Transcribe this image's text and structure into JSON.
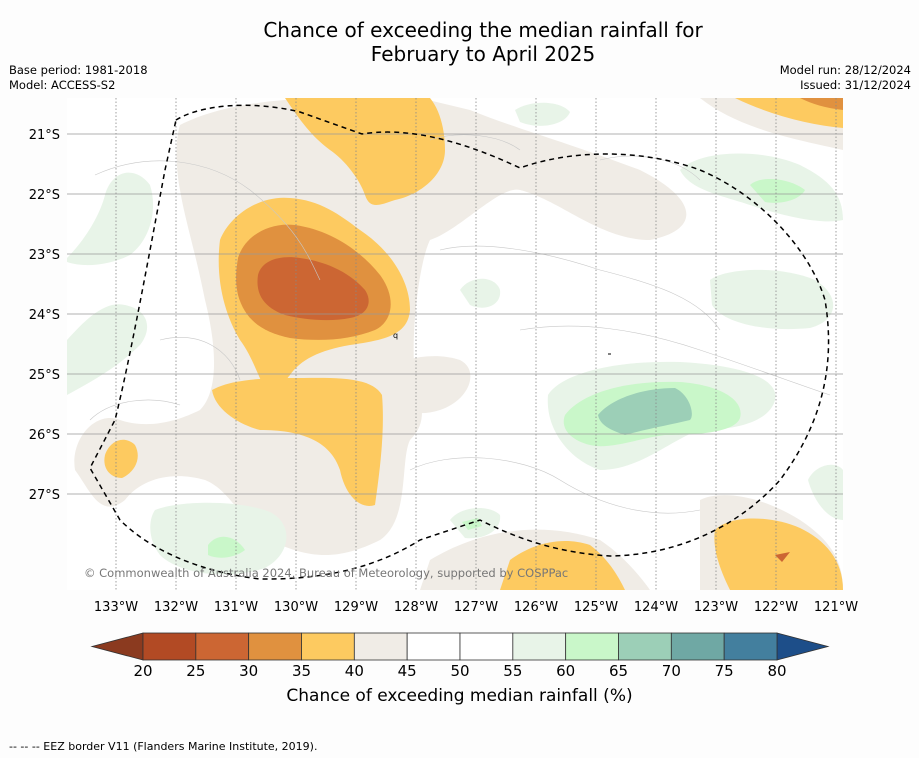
{
  "header": {
    "title_line1": "Chance of exceeding the median rainfall for",
    "title_line2": "February to April 2025",
    "base_period": "Base period: 1981-2018",
    "model": "Model: ACCESS-S2",
    "model_run": "Model run: 28/12/2024",
    "issued": "Issued: 31/12/2024"
  },
  "map": {
    "copyright": "© Commonwealth of Australia 2024, Bureau of Meteorology, supported by COSPPac",
    "lat_labels": [
      "21°S",
      "22°S",
      "23°S",
      "24°S",
      "25°S",
      "26°S",
      "27°S"
    ],
    "lon_labels": [
      "133°W",
      "132°W",
      "131°W",
      "130°W",
      "129°W",
      "128°W",
      "127°W",
      "126°W",
      "125°W",
      "124°W",
      "123°W",
      "122°W",
      "121°W"
    ]
  },
  "colorbar": {
    "ticks": [
      "20",
      "25",
      "30",
      "35",
      "40",
      "45",
      "50",
      "55",
      "60",
      "65",
      "70",
      "75",
      "80"
    ],
    "colors": [
      "#b24a24",
      "#cc6633",
      "#e0913f",
      "#fdca60",
      "#f0ece6",
      "#ffffff",
      "#ffffff",
      "#e8f4e8",
      "#c9f7c9",
      "#9ccfb7",
      "#6fa8a4",
      "#437f9e"
    ],
    "low_color": "#8b3a1f",
    "high_color": "#1d4e89",
    "label": "Chance of exceeding median rainfall (%)"
  },
  "footer": {
    "legend_note": "--  --  -- EEZ border V11 (Flanders Marine Institute, 2019)."
  },
  "chart_data": {
    "type": "heatmap",
    "title": "Chance of exceeding the median rainfall for February to April 2025",
    "xlabel": "",
    "ylabel": "",
    "xlim": [
      "133.8°W",
      "120.9°W"
    ],
    "ylim": [
      "28.6°S",
      "20.4°S"
    ],
    "grid": true,
    "legend": "colorbar-bottom",
    "units": "%",
    "levels": [
      20,
      25,
      30,
      35,
      40,
      45,
      50,
      55,
      60,
      65,
      70,
      75,
      80
    ],
    "features": [
      {
        "region": "near 130.5°W, 23.7°S",
        "value_range": [
          20,
          25
        ]
      },
      {
        "region": "near 130.5°W, 23.7°S (surrounding)",
        "value_range": [
          25,
          30
        ]
      },
      {
        "region": "near 129.2°W, 21.5°S",
        "value_range": [
          35,
          40
        ]
      },
      {
        "region": "near 124.5°W, 25.6°S",
        "value_range": [
          65,
          70
        ]
      },
      {
        "region": "near 124.5°W, 25.8°S (surrounding)",
        "value_range": [
          60,
          65
        ]
      },
      {
        "region": "near 122.0°W, 27.9°S",
        "value_range": [
          35,
          40
        ]
      },
      {
        "region": "near 121.5°W, 20.8°S",
        "value_range": [
          30,
          40
        ]
      }
    ]
  }
}
